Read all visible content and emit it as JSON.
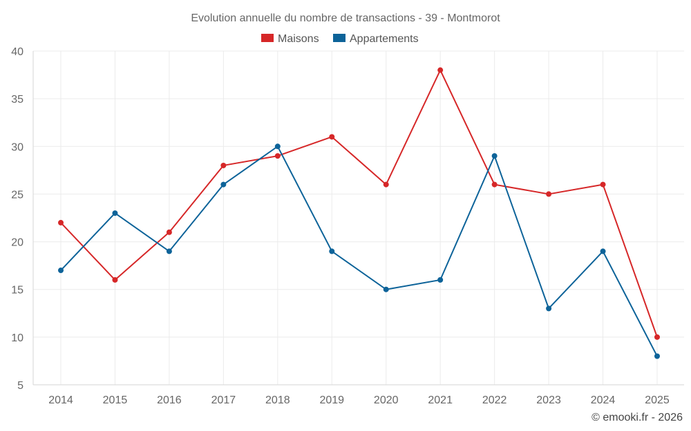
{
  "chart_data": {
    "type": "line",
    "title": "Evolution annuelle du nombre de transactions - 39 - Montmorot",
    "xlabel": "",
    "ylabel": "",
    "categories": [
      "2014",
      "2015",
      "2016",
      "2017",
      "2018",
      "2019",
      "2020",
      "2021",
      "2022",
      "2023",
      "2024",
      "2025"
    ],
    "ylim": [
      5,
      40
    ],
    "yticks": [
      5,
      10,
      15,
      20,
      25,
      30,
      35,
      40
    ],
    "grid": true,
    "legend_position": "top-center",
    "series": [
      {
        "name": "Maisons",
        "color": "#d62728",
        "values": [
          22,
          16,
          21,
          28,
          29,
          31,
          26,
          38,
          26,
          25,
          26,
          10
        ]
      },
      {
        "name": "Appartements",
        "color": "#0d6399",
        "values": [
          17,
          23,
          19,
          26,
          30,
          19,
          15,
          16,
          29,
          13,
          19,
          8
        ]
      }
    ],
    "credit": "© emooki.fr - 2026"
  }
}
